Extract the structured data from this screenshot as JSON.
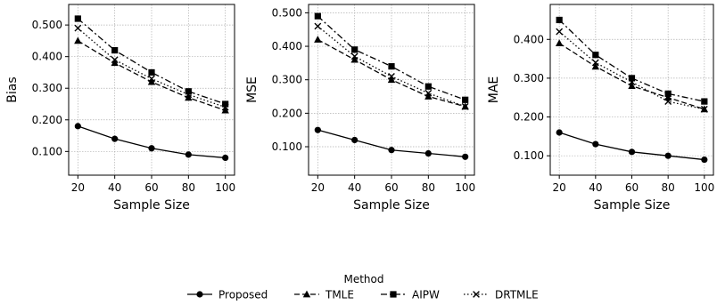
{
  "chart_data": [
    {
      "type": "line",
      "xlabel": "Sample Size",
      "ylabel": "Bias",
      "x": [
        20,
        40,
        60,
        80,
        100
      ],
      "xlim": [
        15,
        105
      ],
      "ylim": [
        0.025,
        0.565
      ],
      "yticks": [
        0.1,
        0.2,
        0.3,
        0.4,
        0.5
      ],
      "ytick_labels": [
        "0.100",
        "0.200",
        "0.300",
        "0.400",
        "0.500"
      ],
      "grid": true,
      "series": [
        {
          "name": "Proposed",
          "values": [
            0.18,
            0.14,
            0.11,
            0.09,
            0.08
          ]
        },
        {
          "name": "TMLE",
          "values": [
            0.45,
            0.38,
            0.32,
            0.27,
            0.23
          ]
        },
        {
          "name": "AIPW",
          "values": [
            0.52,
            0.42,
            0.35,
            0.29,
            0.25
          ]
        },
        {
          "name": "DRTMLE",
          "values": [
            0.49,
            0.39,
            0.33,
            0.28,
            0.24
          ]
        }
      ]
    },
    {
      "type": "line",
      "xlabel": "Sample Size",
      "ylabel": "MSE",
      "x": [
        20,
        40,
        60,
        80,
        100
      ],
      "xlim": [
        15,
        105
      ],
      "ylim": [
        0.015,
        0.525
      ],
      "yticks": [
        0.1,
        0.2,
        0.3,
        0.4,
        0.5
      ],
      "ytick_labels": [
        "0.100",
        "0.200",
        "0.300",
        "0.400",
        "0.500"
      ],
      "grid": true,
      "series": [
        {
          "name": "Proposed",
          "values": [
            0.15,
            0.12,
            0.09,
            0.08,
            0.07
          ]
        },
        {
          "name": "TMLE",
          "values": [
            0.42,
            0.36,
            0.3,
            0.25,
            0.22
          ]
        },
        {
          "name": "AIPW",
          "values": [
            0.49,
            0.39,
            0.34,
            0.28,
            0.24
          ]
        },
        {
          "name": "DRTMLE",
          "values": [
            0.46,
            0.37,
            0.31,
            0.26,
            0.22
          ]
        }
      ]
    },
    {
      "type": "line",
      "xlabel": "Sample Size",
      "ylabel": "MAE",
      "x": [
        20,
        40,
        60,
        80,
        100
      ],
      "xlim": [
        15,
        105
      ],
      "ylim": [
        0.05,
        0.49
      ],
      "yticks": [
        0.1,
        0.2,
        0.3,
        0.4
      ],
      "ytick_labels": [
        "0.100",
        "0.200",
        "0.300",
        "0.400"
      ],
      "grid": true,
      "series": [
        {
          "name": "Proposed",
          "values": [
            0.16,
            0.13,
            0.11,
            0.1,
            0.09
          ]
        },
        {
          "name": "TMLE",
          "values": [
            0.39,
            0.33,
            0.28,
            0.25,
            0.22
          ]
        },
        {
          "name": "AIPW",
          "values": [
            0.45,
            0.36,
            0.3,
            0.26,
            0.24
          ]
        },
        {
          "name": "DRTMLE",
          "values": [
            0.42,
            0.34,
            0.29,
            0.24,
            0.22
          ]
        }
      ]
    }
  ],
  "legend": {
    "title": "Method",
    "position": "bottom-center",
    "entries": [
      {
        "label": "Proposed",
        "marker": "circle",
        "line": "solid"
      },
      {
        "label": "TMLE",
        "marker": "triangle",
        "line": "dashed"
      },
      {
        "label": "AIPW",
        "marker": "square",
        "line": "dashdot"
      },
      {
        "label": "DRTMLE",
        "marker": "x",
        "line": "dotted"
      }
    ]
  },
  "colors": {
    "line": "#000000",
    "grid": "#b0b0b0",
    "background": "#ffffff"
  }
}
